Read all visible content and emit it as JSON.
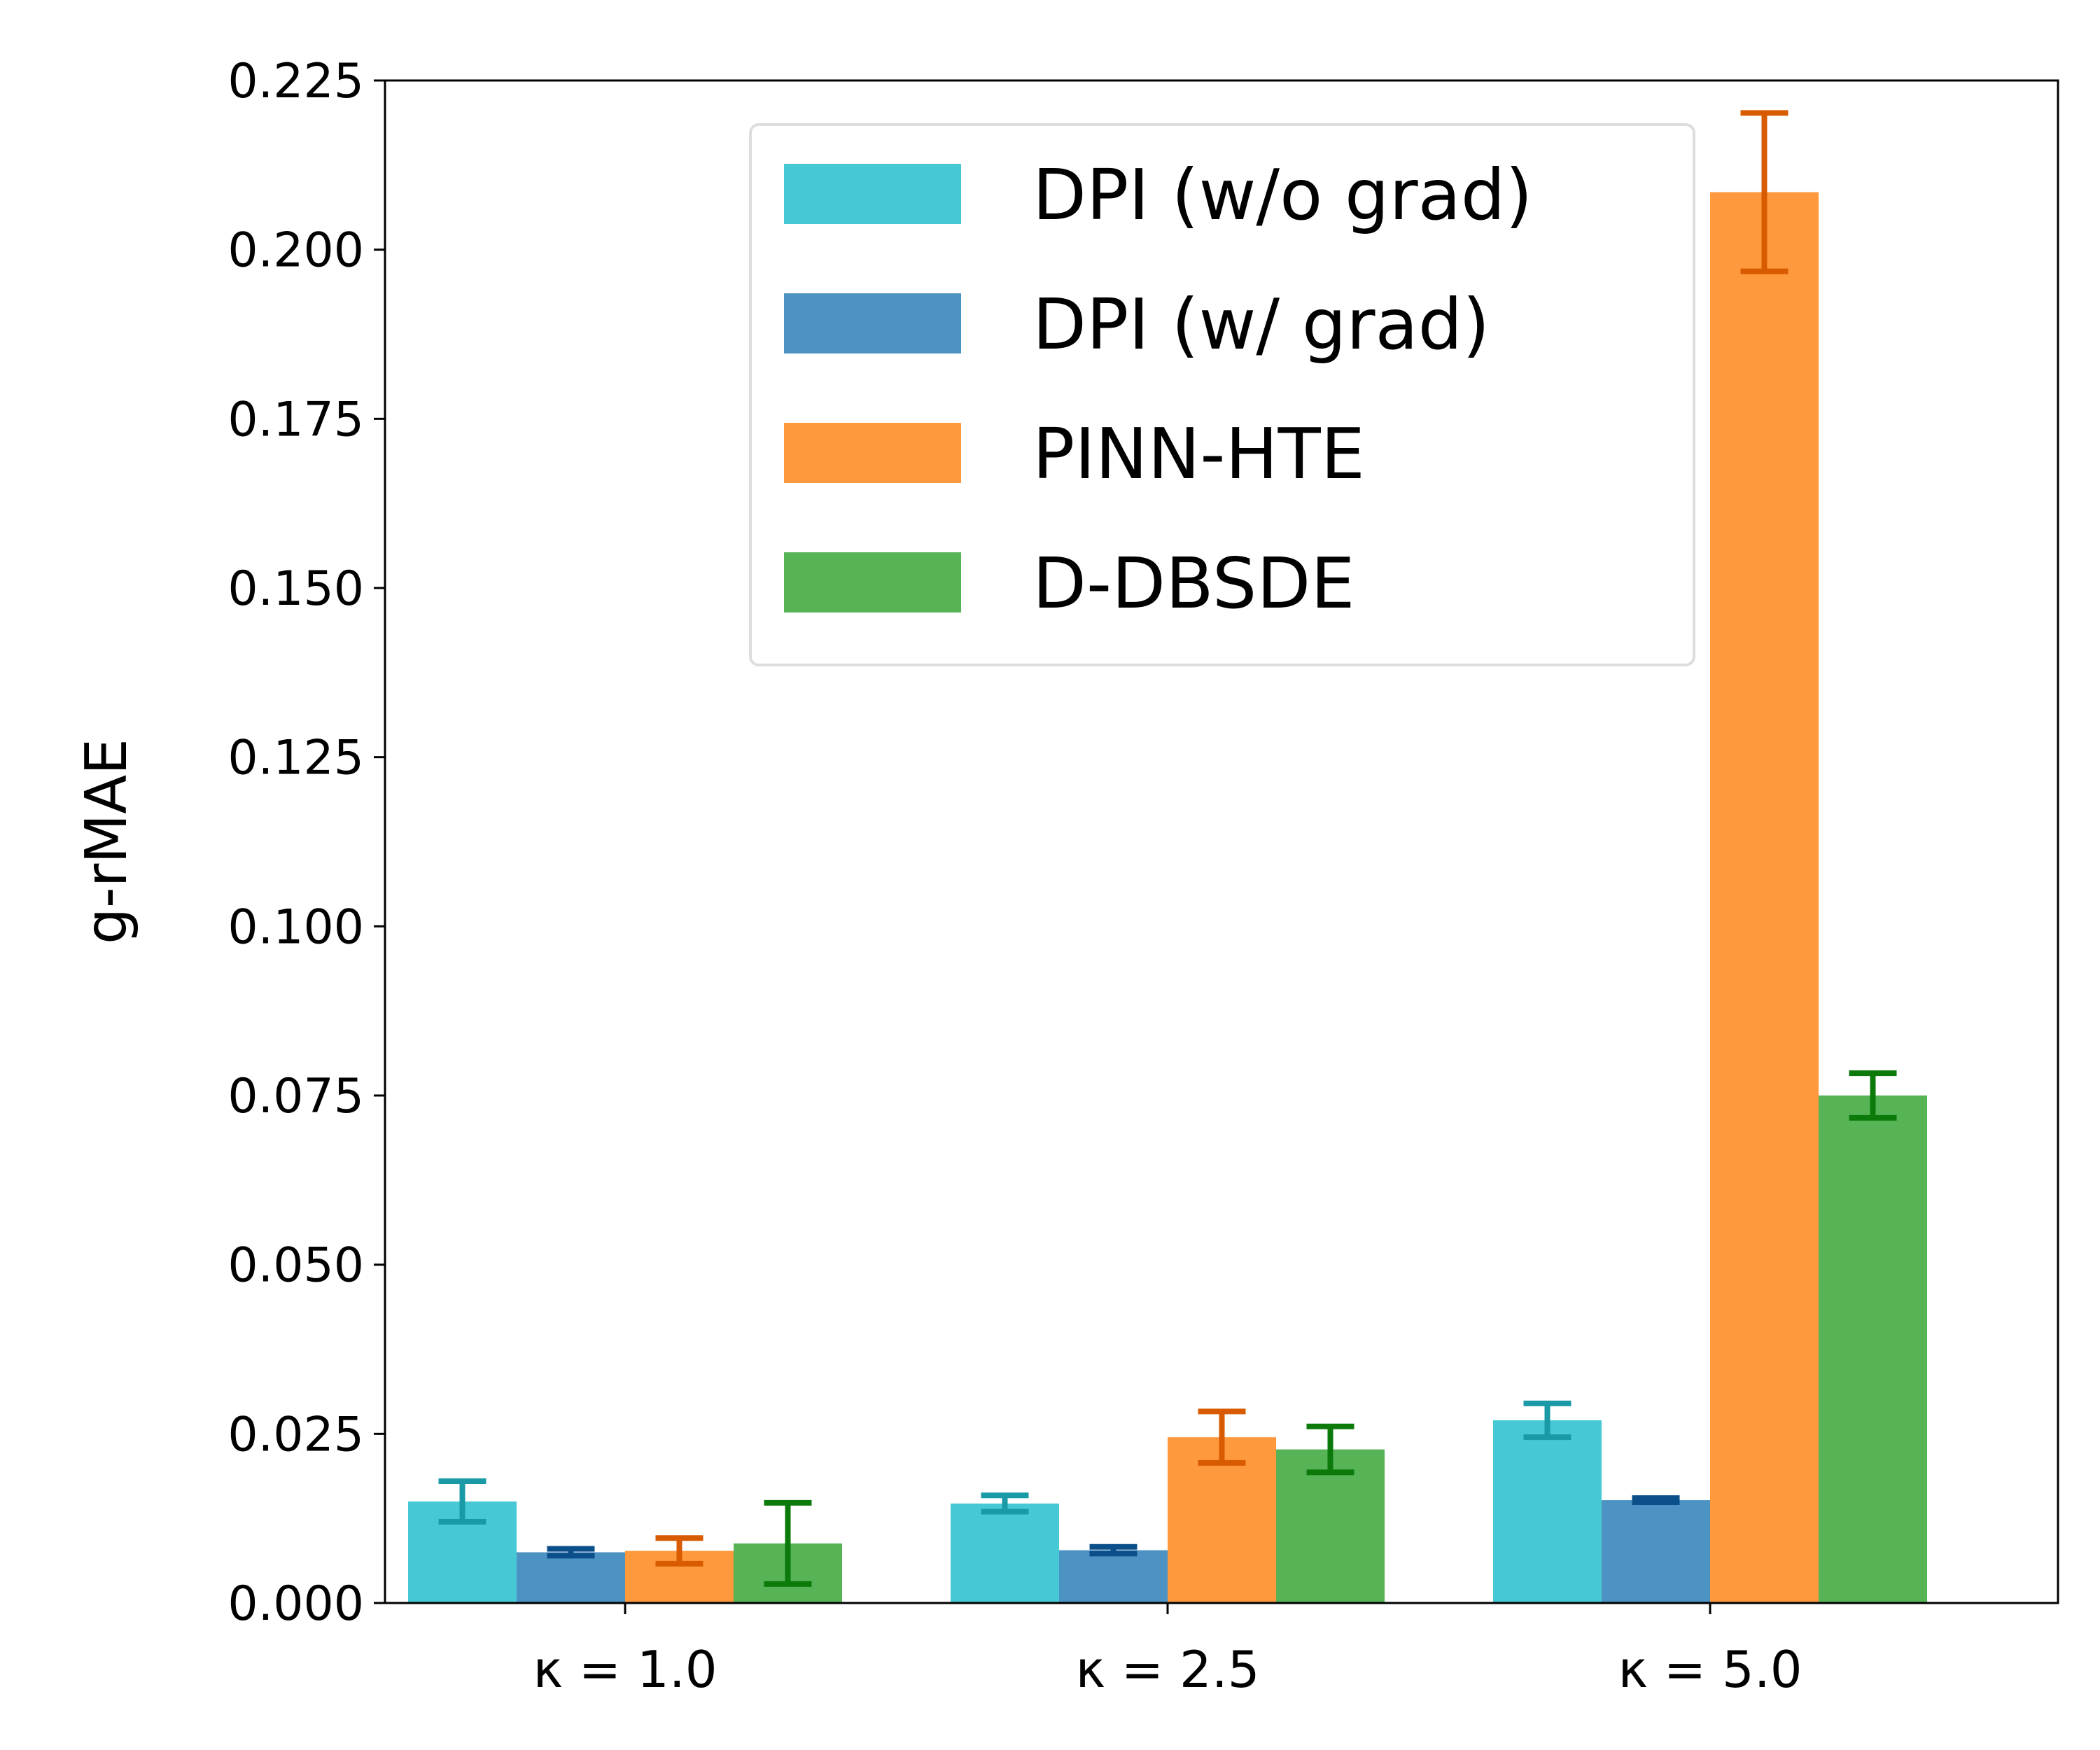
{
  "chart_data": {
    "type": "bar",
    "title": "",
    "xlabel": "",
    "ylabel": "g-rMAE",
    "categories": [
      "κ = 1.0",
      "κ = 2.5",
      "κ = 5.0"
    ],
    "ylim": [
      0,
      0.225
    ],
    "yticks": [
      "0.000",
      "0.025",
      "0.050",
      "0.075",
      "0.100",
      "0.125",
      "0.150",
      "0.175",
      "0.200",
      "0.225"
    ],
    "legend_position": "upper center",
    "grid": false,
    "series": [
      {
        "name": "DPI (w/o grad)",
        "color": "#47c9d5",
        "error_color": "#1a9aa6",
        "values": [
          0.015,
          0.0147,
          0.027
        ],
        "errors": [
          0.003,
          0.0012,
          0.0025
        ]
      },
      {
        "name": "DPI (w/ grad)",
        "color": "#4c92c3",
        "error_color": "#0a4f8a",
        "values": [
          0.0075,
          0.0078,
          0.0152
        ],
        "errors": [
          0.0005,
          0.0005,
          0.0003
        ]
      },
      {
        "name": "PINN-HTE",
        "color": "#ff993e",
        "error_color": "#d95b00",
        "values": [
          0.0077,
          0.0245,
          0.2085
        ],
        "errors": [
          0.0019,
          0.0038,
          0.0117
        ]
      },
      {
        "name": "D-DBSDE",
        "color": "#56b356",
        "error_color": "#0b7a0b",
        "values": [
          0.0088,
          0.0227,
          0.075
        ],
        "errors": [
          0.006,
          0.0034,
          0.0033
        ]
      }
    ]
  }
}
